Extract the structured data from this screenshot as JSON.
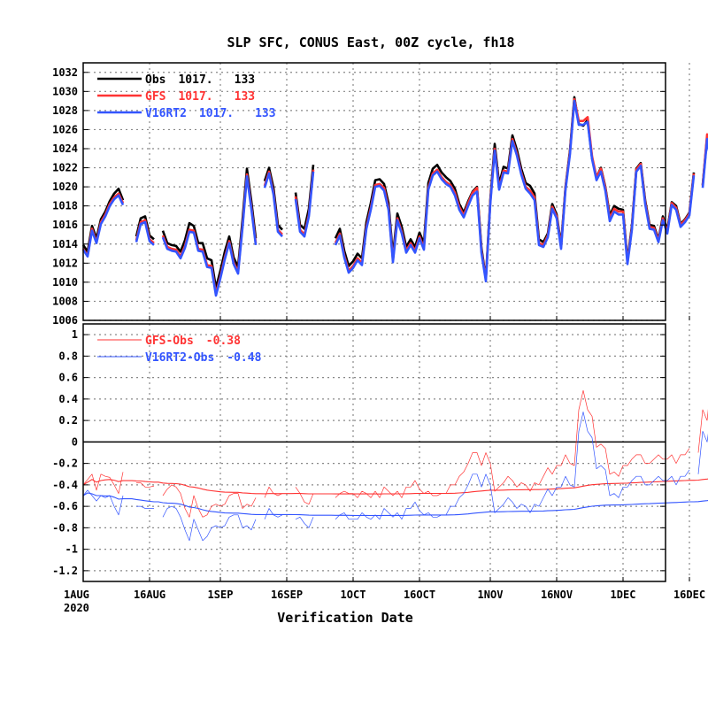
{
  "title": "SLP SFC, CONUS East, 00Z cycle, fh18",
  "xlabel": "Verification Date",
  "x_ticks": [
    "1AUG",
    "16AUG",
    "1SEP",
    "16SEP",
    "1OCT",
    "16OCT",
    "1NOV",
    "16NOV",
    "1DEC",
    "16DEC"
  ],
  "x_year_label": "2020",
  "colors": {
    "obs": "#000000",
    "gfs": "#ff3333",
    "v16": "#3355ff"
  },
  "chart_data": [
    {
      "type": "line",
      "panel": "top",
      "y_range": [
        1006,
        1033
      ],
      "y_ticks": [
        "1006",
        "1008",
        "1010",
        "1012",
        "1014",
        "1016",
        "1018",
        "1020",
        "1022",
        "1024",
        "1026",
        "1028",
        "1030",
        "1032"
      ],
      "grid": true,
      "legend_position": "top-left",
      "x_start_date": "2020-08-01",
      "x_step_days": 1,
      "legend": [
        {
          "label": "Obs",
          "mean": "1017.",
          "count": "133"
        },
        {
          "label": "GFS",
          "mean": "1017.",
          "count": "133"
        },
        {
          "label": "V16RT2",
          "mean": "1017.",
          "count": "133"
        }
      ],
      "series": [
        {
          "name": "Obs",
          "values": [
            1013.9,
            1013.2,
            1015.9,
            1014.6,
            1016.6,
            1017.4,
            1018.5,
            1019.3,
            1019.8,
            1018.6,
            null,
            null,
            1014.8,
            1016.7,
            1016.9,
            1014.9,
            1014.5,
            null,
            1015.4,
            1014.1,
            1013.9,
            1013.8,
            1013.2,
            1014.4,
            1016.2,
            1015.9,
            1014.1,
            1014.1,
            1012.5,
            1012.3,
            1009.4,
            1011.2,
            1013.2,
            1014.8,
            1012.6,
            1011.6,
            1016.5,
            1021.9,
            1018.5,
            1014.6,
            null,
            1020.6,
            1022.0,
            1019.9,
            1016.0,
            1015.5,
            null,
            null,
            1019.4,
            1016.0,
            1015.6,
            1017.7,
            1022.3,
            null,
            null,
            null,
            null,
            1014.6,
            1015.6,
            1013.3,
            1011.7,
            1012.2,
            1013.0,
            1012.5,
            1016.3,
            1018.3,
            1020.7,
            1020.8,
            1020.3,
            1018.3,
            1012.8,
            1017.2,
            1015.8,
            1013.7,
            1014.5,
            1013.7,
            1015.2,
            1014.1,
            1020.4,
            1021.9,
            1022.3,
            1021.5,
            1021.0,
            1020.6,
            1019.8,
            1018.2,
            1017.3,
            1018.5,
            1019.5,
            1020.0,
            1013.6,
            1010.4,
            1018.6,
            1024.5,
            1020.3,
            1022.1,
            1021.9,
            1025.4,
            1023.9,
            1021.9,
            1020.4,
            1020.1,
            1019.3,
            1014.5,
            1014.2,
            1015.1,
            1018.2,
            1017.1,
            1013.9,
            1020.0,
            1023.8,
            1029.4,
            1026.6,
            1026.4,
            1027.0,
            1023.0,
            1021.0,
            1022.0,
            1020.0,
            1017.0,
            1018.0,
            1017.7,
            1017.6,
            1012.3,
            1015.9,
            1021.9,
            1022.5,
            1018.6,
            1016.0,
            1015.9,
            1014.5,
            1016.9,
            1015.5,
            1018.4,
            1018.0,
            1016.1,
            1016.6,
            1017.3,
            1021.5,
            null,
            1020.2,
            1025.2,
            1022.3,
            1016.8
          ]
        },
        {
          "name": "GFS",
          "values": [
            1013.5,
            1012.8,
            1015.6,
            1014.2,
            1016.3,
            1017.1,
            1018.2,
            1018.9,
            1019.3,
            1018.3,
            null,
            null,
            1014.4,
            1016.3,
            1016.5,
            1014.5,
            1014.1,
            null,
            1014.9,
            1013.7,
            1013.5,
            1013.4,
            1012.7,
            1013.8,
            1015.5,
            1015.4,
            1013.5,
            1013.4,
            1011.8,
            1011.7,
            1008.8,
            1010.6,
            1012.6,
            1014.3,
            1012.1,
            1011.1,
            1015.9,
            1021.3,
            1017.9,
            1014.1,
            null,
            1020.1,
            1021.6,
            1019.4,
            1015.5,
            1015.0,
            null,
            null,
            1019.0,
            1015.5,
            1015.0,
            1017.1,
            1021.8,
            null,
            null,
            null,
            null,
            1014.1,
            1015.1,
            1012.8,
            1011.2,
            1011.7,
            1012.5,
            1012.0,
            1015.8,
            1017.8,
            1020.2,
            1020.3,
            1019.9,
            1017.8,
            1012.3,
            1016.7,
            1015.3,
            1013.3,
            1014.1,
            1013.3,
            1014.8,
            1013.6,
            1019.9,
            1021.4,
            1021.8,
            1021.0,
            1020.5,
            1020.2,
            1019.4,
            1017.9,
            1017.0,
            1018.3,
            1019.4,
            1019.9,
            1013.3,
            1010.3,
            1018.4,
            1024.0,
            1019.9,
            1021.7,
            1021.6,
            1025.0,
            1023.5,
            1021.5,
            1020.0,
            1019.6,
            1018.9,
            1014.1,
            1013.9,
            1014.9,
            1017.9,
            1016.9,
            1013.7,
            1019.9,
            1023.6,
            1029.2,
            1026.9,
            1026.9,
            1027.3,
            1023.2,
            1021.0,
            1021.9,
            1019.9,
            1016.7,
            1017.7,
            1017.4,
            1017.4,
            1012.1,
            1015.7,
            1021.8,
            1022.4,
            1018.4,
            1015.8,
            1015.7,
            1014.4,
            1016.7,
            1015.3,
            1018.3,
            1017.8,
            1016.0,
            1016.5,
            1017.2,
            1021.4,
            null,
            1020.1,
            1025.5,
            1022.5,
            1017.0
          ]
        },
        {
          "name": "V16RT2",
          "values": [
            1013.4,
            1012.7,
            1015.4,
            1014.1,
            1016.1,
            1016.9,
            1018.0,
            1018.7,
            1019.1,
            1018.1,
            null,
            null,
            1014.2,
            1016.1,
            1016.3,
            1014.3,
            1013.9,
            null,
            1014.7,
            1013.5,
            1013.3,
            1013.2,
            1012.5,
            1013.6,
            1015.3,
            1015.2,
            1013.3,
            1013.2,
            1011.6,
            1011.5,
            1008.6,
            1010.4,
            1012.4,
            1014.1,
            1011.9,
            1010.9,
            1015.7,
            1021.1,
            1017.7,
            1013.9,
            null,
            1019.9,
            1021.4,
            1019.2,
            1015.3,
            1014.8,
            null,
            null,
            1018.7,
            1015.3,
            1014.8,
            1016.9,
            1021.6,
            null,
            null,
            null,
            null,
            1013.9,
            1014.9,
            1012.6,
            1011.0,
            1011.5,
            1012.3,
            1011.8,
            1015.6,
            1017.6,
            1020.0,
            1020.1,
            1019.6,
            1017.6,
            1012.1,
            1016.5,
            1015.1,
            1013.1,
            1013.9,
            1013.1,
            1014.6,
            1013.4,
            1019.7,
            1021.2,
            1021.6,
            1020.8,
            1020.3,
            1020.0,
            1019.1,
            1017.6,
            1016.8,
            1018.0,
            1019.1,
            1019.5,
            1013.1,
            1010.1,
            1018.2,
            1023.8,
            1019.7,
            1021.5,
            1021.4,
            1024.8,
            1023.3,
            1021.3,
            1019.8,
            1019.3,
            1018.6,
            1013.9,
            1013.7,
            1014.7,
            1017.7,
            1016.7,
            1013.5,
            1019.7,
            1023.4,
            1029.0,
            1026.5,
            1026.5,
            1026.8,
            1022.9,
            1020.7,
            1021.6,
            1019.6,
            1016.4,
            1017.4,
            1017.1,
            1017.1,
            1011.9,
            1015.5,
            1021.6,
            1022.2,
            1018.2,
            1015.6,
            1015.5,
            1014.2,
            1016.5,
            1015.1,
            1018.1,
            1017.6,
            1015.8,
            1016.3,
            1017.0,
            1021.2,
            null,
            1019.9,
            1025.0,
            1022.1,
            1016.6
          ]
        }
      ]
    },
    {
      "type": "line",
      "panel": "bottom",
      "y_range": [
        -1.3,
        1.1
      ],
      "y_ticks": [
        "-1.2",
        "-1",
        "-0.8",
        "-0.6",
        "-0.4",
        "-0.2",
        "0",
        "0.2",
        "0.4",
        "0.6",
        "0.8",
        "1"
      ],
      "zero_line": true,
      "grid": true,
      "legend_position": "top-left",
      "x_start_date": "2020-08-01",
      "x_step_days": 1,
      "legend": [
        {
          "label": "GFS-Obs",
          "mean": "-0.38"
        },
        {
          "label": "V16RT2-Obs",
          "mean": "-0.48"
        }
      ],
      "series": [
        {
          "name": "GFS-Obs",
          "values": [
            -0.4,
            -0.35,
            -0.3,
            -0.45,
            -0.3,
            -0.32,
            -0.33,
            -0.4,
            -0.48,
            -0.28,
            null,
            null,
            -0.38,
            -0.38,
            -0.42,
            -0.42,
            -0.41,
            null,
            -0.5,
            -0.44,
            -0.4,
            -0.42,
            -0.48,
            -0.62,
            -0.7,
            -0.5,
            -0.62,
            -0.7,
            -0.68,
            -0.6,
            -0.58,
            -0.6,
            -0.58,
            -0.5,
            -0.48,
            -0.48,
            -0.62,
            -0.58,
            -0.6,
            -0.52,
            null,
            -0.52,
            -0.42,
            -0.48,
            -0.5,
            -0.48,
            null,
            null,
            -0.42,
            -0.48,
            -0.56,
            -0.58,
            -0.48,
            null,
            null,
            null,
            null,
            -0.52,
            -0.48,
            -0.46,
            -0.48,
            -0.48,
            -0.52,
            -0.46,
            -0.48,
            -0.52,
            -0.46,
            -0.52,
            -0.42,
            -0.46,
            -0.5,
            -0.46,
            -0.52,
            -0.42,
            -0.42,
            -0.36,
            -0.44,
            -0.48,
            -0.46,
            -0.5,
            -0.5,
            -0.48,
            -0.48,
            -0.4,
            -0.4,
            -0.32,
            -0.28,
            -0.2,
            -0.1,
            -0.1,
            -0.22,
            -0.1,
            -0.2,
            -0.46,
            -0.42,
            -0.38,
            -0.32,
            -0.36,
            -0.42,
            -0.38,
            -0.4,
            -0.46,
            -0.38,
            -0.4,
            -0.32,
            -0.24,
            -0.3,
            -0.22,
            -0.22,
            -0.12,
            -0.2,
            -0.22,
            0.3,
            0.48,
            0.3,
            0.24,
            -0.05,
            -0.02,
            -0.06,
            -0.3,
            -0.28,
            -0.32,
            -0.22,
            -0.22,
            -0.16,
            -0.12,
            -0.12,
            -0.2,
            -0.2,
            -0.16,
            -0.12,
            -0.16,
            -0.16,
            -0.12,
            -0.2,
            -0.12,
            -0.12,
            -0.06,
            null,
            -0.1,
            0.3,
            0.2,
            0.6
          ]
        },
        {
          "name": "V16RT2-Obs",
          "values": [
            -0.5,
            -0.45,
            -0.5,
            -0.55,
            -0.5,
            -0.52,
            -0.5,
            -0.6,
            -0.68,
            -0.5,
            null,
            null,
            -0.6,
            -0.6,
            -0.62,
            -0.62,
            -0.62,
            null,
            -0.7,
            -0.62,
            -0.6,
            -0.62,
            -0.7,
            -0.82,
            -0.92,
            -0.72,
            -0.82,
            -0.92,
            -0.88,
            -0.8,
            -0.78,
            -0.8,
            -0.78,
            -0.7,
            -0.68,
            -0.68,
            -0.8,
            -0.78,
            -0.82,
            -0.72,
            null,
            -0.72,
            -0.62,
            -0.68,
            -0.7,
            -0.68,
            null,
            null,
            -0.72,
            -0.7,
            -0.76,
            -0.8,
            -0.7,
            null,
            null,
            null,
            null,
            -0.72,
            -0.68,
            -0.66,
            -0.72,
            -0.72,
            -0.72,
            -0.66,
            -0.7,
            -0.72,
            -0.68,
            -0.72,
            -0.62,
            -0.66,
            -0.7,
            -0.66,
            -0.72,
            -0.62,
            -0.62,
            -0.56,
            -0.64,
            -0.68,
            -0.66,
            -0.7,
            -0.7,
            -0.68,
            -0.68,
            -0.6,
            -0.6,
            -0.52,
            -0.48,
            -0.4,
            -0.3,
            -0.3,
            -0.42,
            -0.3,
            -0.4,
            -0.66,
            -0.62,
            -0.58,
            -0.52,
            -0.56,
            -0.62,
            -0.58,
            -0.6,
            -0.66,
            -0.58,
            -0.6,
            -0.52,
            -0.44,
            -0.5,
            -0.42,
            -0.42,
            -0.32,
            -0.4,
            -0.42,
            0.1,
            0.28,
            0.1,
            0.04,
            -0.25,
            -0.22,
            -0.26,
            -0.5,
            -0.48,
            -0.52,
            -0.42,
            -0.42,
            -0.36,
            -0.32,
            -0.32,
            -0.4,
            -0.4,
            -0.36,
            -0.32,
            -0.36,
            -0.36,
            -0.32,
            -0.4,
            -0.32,
            -0.32,
            -0.26,
            null,
            -0.3,
            0.1,
            0.0,
            0.3
          ]
        }
      ]
    }
  ]
}
